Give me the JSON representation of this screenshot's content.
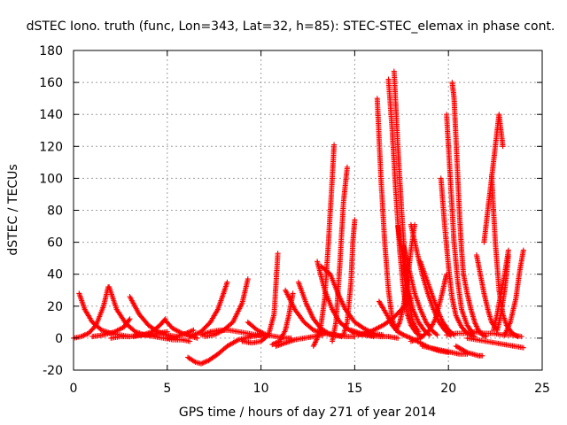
{
  "chart_data": {
    "type": "scatter",
    "title": "dSTEC Iono. truth (func, Lon=343, Lat=32, h=85): STEC-STEC_elemax in phase cont.",
    "xlabel": "GPS time / hours of day 271 of year 2014",
    "ylabel": "dSTEC  / TECUs",
    "xlim": [
      0,
      25
    ],
    "ylim": [
      -20,
      180
    ],
    "xticks": [
      0,
      5,
      10,
      15,
      20,
      25
    ],
    "yticks": [
      -20,
      0,
      20,
      40,
      60,
      80,
      100,
      120,
      140,
      160,
      180
    ],
    "grid": true,
    "marker": "+",
    "color": "#ff0000",
    "series": [
      {
        "x": [
          0.0,
          0.4,
          0.8,
          1.2,
          1.6,
          1.85
        ],
        "y": [
          0,
          1,
          3,
          8,
          20,
          32
        ]
      },
      {
        "x": [
          0.3,
          0.6,
          1.0,
          1.5,
          2.0,
          2.5,
          3.0
        ],
        "y": [
          28,
          18,
          10,
          5,
          3,
          2,
          1
        ]
      },
      {
        "x": [
          1.9,
          2.3,
          2.8,
          3.3,
          3.8,
          4.3,
          4.8,
          5.3,
          5.8,
          6.2
        ],
        "y": [
          32,
          18,
          9,
          4,
          2,
          1,
          0,
          -1,
          -1,
          -2
        ]
      },
      {
        "x": [
          2.0,
          2.5,
          3.0,
          3.5,
          4.0,
          4.5,
          5.0
        ],
        "y": [
          0,
          1,
          1,
          2,
          2,
          3,
          4
        ]
      },
      {
        "x": [
          1.0,
          1.6,
          2.2,
          2.7,
          3.0
        ],
        "y": [
          1,
          2,
          4,
          7,
          12
        ]
      },
      {
        "x": [
          3.0,
          3.5,
          4.0,
          4.5,
          5.0,
          5.5
        ],
        "y": [
          26,
          15,
          8,
          4,
          2,
          1
        ]
      },
      {
        "x": [
          3.2,
          3.7,
          4.2,
          4.6,
          4.9
        ],
        "y": [
          1,
          2,
          4,
          8,
          12
        ]
      },
      {
        "x": [
          4.9,
          5.3,
          5.8,
          6.3,
          6.6
        ],
        "y": [
          11,
          6,
          3,
          1,
          0
        ]
      },
      {
        "x": [
          5.0,
          5.5,
          6.0,
          6.4
        ],
        "y": [
          0,
          1,
          3,
          5
        ]
      },
      {
        "x": [
          6.1,
          6.5,
          6.8,
          7.2,
          7.7,
          8.2,
          8.8,
          9.5,
          10.0
        ],
        "y": [
          -12,
          -15,
          -16,
          -14,
          -10,
          -5,
          -1,
          1,
          2
        ]
      },
      {
        "x": [
          6.2,
          6.8,
          7.3,
          7.7,
          8.0,
          8.2
        ],
        "y": [
          1,
          4,
          10,
          18,
          28,
          35
        ]
      },
      {
        "x": [
          7.0,
          7.5,
          8.0,
          8.5,
          9.0,
          9.3
        ],
        "y": [
          1,
          2,
          5,
          10,
          22,
          37
        ]
      },
      {
        "x": [
          6.8,
          7.3,
          7.8,
          8.3,
          8.8,
          9.3,
          9.8,
          10.3
        ],
        "y": [
          2,
          4,
          5,
          5,
          4,
          3,
          2,
          1
        ]
      },
      {
        "x": [
          9.0,
          9.5,
          10.0,
          10.4,
          10.7,
          10.9
        ],
        "y": [
          -2,
          -3,
          -2,
          2,
          15,
          53
        ]
      },
      {
        "x": [
          9.3,
          9.8,
          10.3,
          10.8,
          11.3,
          11.6
        ],
        "y": [
          10,
          5,
          2,
          1,
          0,
          0
        ]
      },
      {
        "x": [
          10.6,
          11.0,
          11.3,
          11.5,
          11.7
        ],
        "y": [
          -4,
          -2,
          5,
          15,
          28
        ]
      },
      {
        "x": [
          10.8,
          11.3,
          11.8,
          12.3,
          12.8,
          13.3
        ],
        "y": [
          -5,
          -3,
          -1,
          0,
          1,
          2
        ]
      },
      {
        "x": [
          11.3,
          11.8,
          12.3,
          12.8,
          13.3,
          13.8,
          14.3
        ],
        "y": [
          30,
          18,
          10,
          5,
          3,
          2,
          1
        ]
      },
      {
        "x": [
          12.0,
          12.4,
          12.8,
          13.2,
          13.6,
          14.0,
          14.5,
          15.0
        ],
        "y": [
          35,
          22,
          12,
          6,
          3,
          2,
          1,
          1
        ]
      },
      {
        "x": [
          12.8,
          13.0,
          13.2,
          13.4,
          13.6,
          13.8,
          13.9
        ],
        "y": [
          -5,
          0,
          8,
          25,
          60,
          100,
          121
        ]
      },
      {
        "x": [
          13.0,
          13.4,
          13.8,
          14.2,
          14.6,
          15.0,
          15.5,
          16.0
        ],
        "y": [
          48,
          30,
          18,
          10,
          6,
          3,
          2,
          1
        ]
      },
      {
        "x": [
          13.2,
          13.7,
          14.1,
          14.5,
          15.0,
          15.5,
          16.0,
          16.5
        ],
        "y": [
          45,
          40,
          28,
          18,
          10,
          6,
          3,
          2
        ]
      },
      {
        "x": [
          13.8,
          14.0,
          14.2,
          14.4,
          14.6
        ],
        "y": [
          -2,
          10,
          45,
          85,
          107
        ]
      },
      {
        "x": [
          14.4,
          14.6,
          14.8,
          14.9,
          15.0
        ],
        "y": [
          2,
          10,
          35,
          60,
          74
        ]
      },
      {
        "x": [
          14.8,
          15.3,
          15.8,
          16.3,
          16.8,
          17.3
        ],
        "y": [
          5,
          3,
          2,
          1,
          1,
          0
        ]
      },
      {
        "x": [
          15.2,
          15.6,
          16.0,
          16.5,
          17.0,
          17.5,
          18.0
        ],
        "y": [
          2,
          3,
          5,
          8,
          12,
          18,
          25
        ]
      },
      {
        "x": [
          16.2,
          16.4,
          16.6,
          16.8,
          17.0,
          17.2
        ],
        "y": [
          150,
          100,
          60,
          30,
          12,
          5
        ]
      },
      {
        "x": [
          16.3,
          16.7,
          17.0,
          17.3,
          17.6,
          18.0,
          18.5,
          19.0,
          19.5,
          20.0
        ],
        "y": [
          23,
          15,
          8,
          4,
          2,
          0,
          -3,
          -6,
          -8,
          -9
        ]
      },
      {
        "x": [
          16.8,
          17.0,
          17.2,
          17.4,
          17.6,
          17.8,
          18.0,
          18.3,
          18.6
        ],
        "y": [
          162,
          130,
          90,
          55,
          30,
          15,
          8,
          3,
          1
        ]
      },
      {
        "x": [
          17.1,
          17.3,
          17.5,
          17.7,
          17.9,
          18.1,
          18.4
        ],
        "y": [
          167,
          120,
          80,
          45,
          22,
          10,
          4
        ]
      },
      {
        "x": [
          17.3,
          17.5,
          17.7,
          17.9,
          18.1,
          18.4,
          18.7,
          19.0
        ],
        "y": [
          70,
          55,
          40,
          28,
          18,
          10,
          5,
          2
        ]
      },
      {
        "x": [
          17.6,
          17.8,
          18.0,
          18.2,
          18.5,
          18.8,
          19.1,
          19.4
        ],
        "y": [
          58,
          48,
          38,
          28,
          18,
          10,
          5,
          2
        ]
      },
      {
        "x": [
          17.2,
          17.4,
          17.6,
          17.8,
          18.0,
          18.2
        ],
        "y": [
          5,
          10,
          20,
          35,
          55,
          71
        ]
      },
      {
        "x": [
          18.0,
          18.3,
          18.6,
          18.9,
          19.2,
          19.5,
          19.8,
          20.1
        ],
        "y": [
          71,
          55,
          40,
          28,
          18,
          10,
          5,
          2
        ]
      },
      {
        "x": [
          18.5,
          18.8,
          19.1,
          19.4,
          19.7,
          20.0,
          20.3
        ],
        "y": [
          48,
          38,
          28,
          18,
          10,
          5,
          2
        ]
      },
      {
        "x": [
          18.0,
          18.5,
          19.0,
          19.3,
          19.6,
          19.8,
          19.9
        ],
        "y": [
          -2,
          0,
          5,
          12,
          25,
          35,
          40
        ]
      },
      {
        "x": [
          18.6,
          19.0,
          19.4,
          19.8,
          20.2,
          20.6,
          21.0
        ],
        "y": [
          -5,
          -6,
          -7,
          -8,
          -9,
          -10,
          -10
        ]
      },
      {
        "x": [
          19.6,
          19.8,
          20.0,
          20.2,
          20.4,
          20.7,
          21.0,
          21.4
        ],
        "y": [
          100,
          70,
          45,
          25,
          14,
          7,
          3,
          1
        ]
      },
      {
        "x": [
          19.9,
          20.1,
          20.3,
          20.5,
          20.7,
          21.0,
          21.3
        ],
        "y": [
          140,
          100,
          60,
          35,
          18,
          8,
          3
        ]
      },
      {
        "x": [
          20.2,
          20.3,
          20.4,
          20.5,
          20.6,
          20.7,
          20.8
        ],
        "y": [
          160,
          150,
          125,
          100,
          75,
          55,
          40
        ]
      },
      {
        "x": [
          20.8,
          21.0,
          21.2,
          21.4,
          21.6,
          21.8,
          22.0
        ],
        "y": [
          40,
          28,
          18,
          10,
          5,
          2,
          1
        ]
      },
      {
        "x": [
          20.4,
          20.7,
          21.0,
          21.3,
          21.6,
          21.8
        ],
        "y": [
          -5,
          -7,
          -9,
          -10,
          -11,
          -11
        ]
      },
      {
        "x": [
          19.9,
          20.4,
          20.9,
          21.4,
          21.9,
          22.4,
          22.9,
          23.4,
          23.9
        ],
        "y": [
          2,
          3,
          3,
          4,
          3,
          3,
          2,
          2,
          1
        ]
      },
      {
        "x": [
          21.5,
          21.7,
          21.9,
          22.1,
          22.3,
          22.6
        ],
        "y": [
          52,
          40,
          28,
          18,
          10,
          5
        ]
      },
      {
        "x": [
          21.9,
          22.1,
          22.3,
          22.5,
          22.7,
          22.9
        ],
        "y": [
          60,
          80,
          100,
          120,
          140,
          120
        ]
      },
      {
        "x": [
          22.3,
          22.5,
          22.7,
          22.9,
          23.1,
          23.4,
          23.7
        ],
        "y": [
          102,
          60,
          30,
          15,
          8,
          3,
          1
        ]
      },
      {
        "x": [
          22.4,
          22.6,
          22.8,
          23.0,
          23.2
        ],
        "y": [
          5,
          15,
          28,
          40,
          55
        ]
      },
      {
        "x": [
          22.6,
          22.8,
          23.0,
          23.1,
          23.2
        ],
        "y": [
          5,
          15,
          30,
          40,
          52
        ]
      },
      {
        "x": [
          23.0,
          23.3,
          23.6,
          23.8,
          24.0
        ],
        "y": [
          2,
          10,
          25,
          42,
          55
        ]
      },
      {
        "x": [
          21.0,
          21.5,
          22.0,
          22.5,
          23.0,
          23.5,
          24.0
        ],
        "y": [
          0,
          -1,
          -2,
          -3,
          -4,
          -5,
          -6
        ]
      }
    ]
  }
}
